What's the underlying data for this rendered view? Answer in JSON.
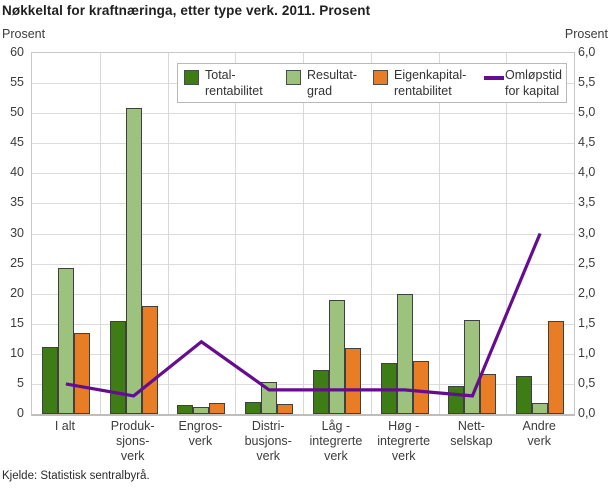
{
  "title": "Nøkkeltal for kraftnæringa, etter type verk. 2011. Prosent",
  "source": "Kjelde: Statistisk sentralbyrå.",
  "chart_data": {
    "type": "bar",
    "subtype": "grouped-bars-with-line-overlay",
    "title": "Nøkkeltal for kraftnæringa, etter type verk. 2011. Prosent",
    "grid": true,
    "legend_position": "top-inside",
    "categories": [
      "I alt",
      "Produksjonsverk",
      "Engrosverk",
      "Distribusjonsverk",
      "Låg - integrerte verk",
      "Høg - integrerte verk",
      "Nettselskap",
      "Andre verk"
    ],
    "category_label_lines": [
      [
        "I alt"
      ],
      [
        "Produk-",
        "sjons-",
        "verk"
      ],
      [
        "Engros-",
        "verk"
      ],
      [
        "Distri-",
        "busjons-",
        "verk"
      ],
      [
        "Låg -",
        "integrerte",
        "verk"
      ],
      [
        "Høg -",
        "integrerte",
        "verk"
      ],
      [
        "Nett-",
        "selskap"
      ],
      [
        "Andre",
        "verk"
      ]
    ],
    "series": [
      {
        "name": "Totalrentabilitet",
        "legend_lines": [
          "Total-",
          "rentabilitet"
        ],
        "type": "bar",
        "axis": "left",
        "color": "#3e7c15",
        "values": [
          11.1,
          15.5,
          1.5,
          2.0,
          7.3,
          8.5,
          4.6,
          6.4
        ]
      },
      {
        "name": "Resultatgrad",
        "legend_lines": [
          "Resultat-",
          "grad"
        ],
        "type": "bar",
        "axis": "left",
        "color": "#9cc27e",
        "values": [
          24.2,
          50.9,
          1.2,
          5.4,
          19.0,
          19.9,
          15.6,
          1.9
        ]
      },
      {
        "name": "Eigenkapitalrentabilitet",
        "legend_lines": [
          "Eigenkapital-",
          "rentabilitet"
        ],
        "type": "bar",
        "axis": "left",
        "color": "#e87d25",
        "values": [
          13.4,
          18.0,
          1.9,
          1.6,
          10.9,
          8.9,
          6.7,
          15.4
        ]
      },
      {
        "name": "Omløpstid for kapital",
        "legend_lines": [
          "Omløpstid",
          "for kapital"
        ],
        "type": "line",
        "axis": "right",
        "color": "#650d90",
        "values": [
          0.5,
          0.3,
          1.2,
          0.4,
          0.4,
          0.4,
          0.3,
          3.0
        ]
      }
    ],
    "left_axis": {
      "label": "Prosent",
      "min": 0,
      "max": 60,
      "tick_step": 5,
      "tick_labels": [
        "0",
        "5",
        "10",
        "15",
        "20",
        "25",
        "30",
        "35",
        "40",
        "45",
        "50",
        "55",
        "60"
      ]
    },
    "right_axis": {
      "label": "Prosent",
      "min": 0,
      "max": 6,
      "tick_step": 0.5,
      "tick_labels": [
        "0,0",
        "0,5",
        "1,0",
        "1,5",
        "2,0",
        "2,5",
        "3,0",
        "3,5",
        "4,0",
        "4,5",
        "5,0",
        "5,5",
        "6,0"
      ]
    }
  }
}
